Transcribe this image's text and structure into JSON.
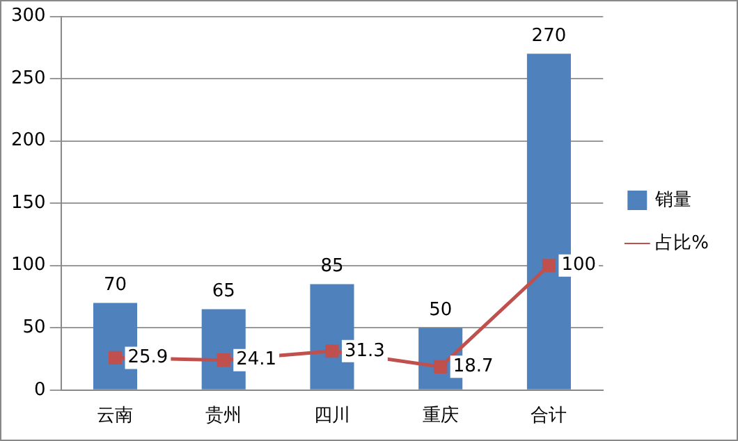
{
  "chart_data": {
    "type": "bar",
    "categories": [
      "云南",
      "贵州",
      "四川",
      "重庆",
      "合计"
    ],
    "series": [
      {
        "name": "销量",
        "color": "#4f81bd",
        "values": [
          70,
          65,
          85,
          50,
          270
        ]
      },
      {
        "name": "占比%",
        "type": "line",
        "color": "#c0504d",
        "values": [
          25.9,
          24.1,
          31.3,
          18.7,
          100
        ]
      }
    ],
    "ylim": [
      0,
      300
    ],
    "yticks": [
      0,
      50,
      100,
      150,
      200,
      250,
      300
    ],
    "grid": "y",
    "legend": "right",
    "marker": "square",
    "line_style": "solid",
    "data_labels": true
  }
}
